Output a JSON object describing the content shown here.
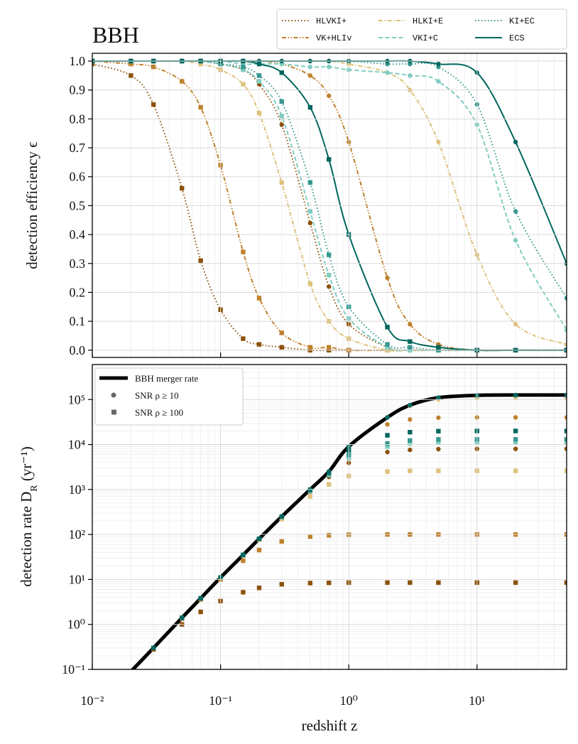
{
  "chart_data": [
    {
      "type": "line",
      "title": "BBH",
      "ylabel": "detection efficiency ϵ",
      "xscale": "log",
      "yscale": "linear",
      "xlim": [
        0.01,
        50
      ],
      "ylim": [
        -0.025,
        1.027
      ],
      "yticks": [
        {
          "value": 0,
          "label": "0.0"
        },
        0.1,
        0.2,
        0.3,
        0.4,
        0.5,
        0.6,
        0.7,
        0.8,
        0.9,
        {
          "value": 1,
          "label": "1.0"
        }
      ],
      "grid": true,
      "legend_loc": "upper right",
      "x": [
        0.01,
        0.02,
        0.03,
        0.05,
        0.07,
        0.1,
        0.15,
        0.2,
        0.3,
        0.5,
        0.7,
        1,
        2,
        3,
        5,
        10,
        20,
        50
      ],
      "series": [
        {
          "name": "HLVKI+",
          "color": "#8c510a",
          "linestyle": "dotted",
          "values": [
            [
              1,
              1,
              1,
              1,
              1,
              0.99,
              0.97,
              0.92,
              0.78,
              0.44,
              0.22,
              0.09,
              0.01,
              0,
              0,
              0,
              0,
              0
            ],
            [
              0.99,
              0.95,
              0.85,
              0.56,
              0.31,
              0.14,
              0.04,
              0.02,
              0.01,
              0,
              0,
              0,
              0,
              0,
              0,
              0,
              0,
              0
            ]
          ]
        },
        {
          "name": "VK+HLIv",
          "color": "#bf812d",
          "linestyle": "dashdotdotted",
          "values": [
            [
              1,
              1,
              1,
              1,
              1,
              1,
              1,
              1,
              0.99,
              0.95,
              0.88,
              0.72,
              0.25,
              0.09,
              0.02,
              0,
              0,
              0
            ],
            [
              1,
              0.99,
              0.98,
              0.93,
              0.84,
              0.64,
              0.34,
              0.18,
              0.06,
              0.01,
              0.01,
              0,
              0,
              0,
              0,
              0,
              0,
              0
            ]
          ]
        },
        {
          "name": "HLKI+E",
          "color": "#dfc27d",
          "linestyle": "dashdot",
          "values": [
            [
              1,
              1,
              1,
              1,
              1,
              1,
              1,
              1,
              1,
              1,
              1,
              0.99,
              0.96,
              0.9,
              0.72,
              0.33,
              0.09,
              0.02
            ],
            [
              1,
              1,
              1,
              1,
              0.99,
              0.97,
              0.92,
              0.82,
              0.58,
              0.23,
              0.1,
              0.04,
              0,
              0,
              0,
              0,
              0,
              0
            ]
          ]
        },
        {
          "name": "VKI+C",
          "color": "#80cdc1",
          "linestyle": "dashed",
          "values": [
            [
              1,
              1,
              1,
              1,
              1,
              1,
              0.99,
              0.99,
              0.99,
              0.98,
              0.98,
              0.97,
              0.96,
              0.95,
              0.93,
              0.78,
              0.38,
              0.07
            ],
            [
              1,
              1,
              1,
              1,
              1,
              0.99,
              0.97,
              0.93,
              0.81,
              0.48,
              0.26,
              0.11,
              0.01,
              0,
              0,
              0,
              0,
              0
            ]
          ]
        },
        {
          "name": "KI+EC",
          "color": "#35978f",
          "linestyle": "dotted",
          "values": [
            [
              1,
              1,
              1,
              1,
              1,
              1,
              1,
              1,
              1,
              1,
              1,
              1,
              0.99,
              0.99,
              0.98,
              0.85,
              0.48,
              0.18
            ],
            [
              1,
              1,
              1,
              1,
              1,
              0.99,
              0.98,
              0.95,
              0.86,
              0.58,
              0.33,
              0.15,
              0.02,
              0.01,
              0,
              0,
              0,
              0
            ]
          ]
        },
        {
          "name": "ECS",
          "color": "#01665e",
          "linestyle": "solid",
          "values": [
            [
              1,
              1,
              1,
              1,
              1,
              1,
              1,
              1,
              1,
              1,
              1,
              1,
              1,
              1,
              0.99,
              0.96,
              0.72,
              0.3
            ],
            [
              1,
              1,
              1,
              1,
              1,
              1,
              1,
              0.99,
              0.96,
              0.84,
              0.66,
              0.4,
              0.08,
              0.03,
              0.01,
              0,
              0,
              0
            ]
          ]
        }
      ]
    },
    {
      "type": "scatter",
      "xlabel": "redshift z",
      "ylabel": [
        "detection rate D",
        "R",
        " (yr⁻¹)"
      ],
      "xscale": "log",
      "yscale": "log",
      "xlim": [
        0.01,
        50
      ],
      "ylim": [
        0.1,
        600000
      ],
      "xticks": [
        {
          "value": 0.01,
          "label": "10⁻²"
        },
        {
          "value": 0.1,
          "label": "10⁻¹"
        },
        {
          "value": 1,
          "label": "10⁰"
        },
        {
          "value": 10,
          "label": "10¹"
        }
      ],
      "yticks": [
        {
          "value": 0.1,
          "label": "10⁻¹"
        },
        {
          "value": 1,
          "label": "10⁰"
        },
        {
          "value": 10,
          "label": "10¹"
        },
        {
          "value": 100,
          "label": "10²"
        },
        {
          "value": 1000,
          "label": "10³"
        },
        {
          "value": 10000,
          "label": "10⁴"
        },
        {
          "value": 100000,
          "label": "10⁵"
        }
      ],
      "grid": true,
      "legend_loc": "upper left",
      "markers": [
        {
          "label": "SNR ρ ≥ 10",
          "shape": "circle"
        },
        {
          "label": "SNR ρ ≥ 100",
          "shape": "square"
        }
      ],
      "x": [
        0.01,
        0.02,
        0.03,
        0.05,
        0.07,
        0.1,
        0.15,
        0.2,
        0.3,
        0.5,
        0.7,
        1,
        2,
        3,
        5,
        10,
        20,
        50
      ],
      "reference": {
        "name": "BBH merger rate",
        "color": "#000000",
        "values": [
          0.012,
          0.09,
          0.3,
          1.4,
          3.8,
          11,
          35,
          80,
          250,
          1000,
          2500,
          9000,
          40000,
          75000,
          110000,
          124000,
          126000,
          126000
        ]
      },
      "series": [
        {
          "name": "HLVKI+",
          "color": "#8c510a",
          "values": [
            [
              0.012,
              0.09,
              0.3,
              1.4,
              3.8,
              11,
              35,
              80,
              248,
              900,
              1900,
              3900,
              6800,
              7600,
              7900,
              8000,
              8000,
              8000
            ],
            [
              0.012,
              0.088,
              0.28,
              1,
              1.9,
              3.3,
              5.2,
              6.5,
              7.8,
              8.3,
              8.4,
              8.5,
              8.5,
              8.5,
              8.5,
              8.5,
              8.5,
              8.5
            ]
          ]
        },
        {
          "name": "VK+HLIv",
          "color": "#bf812d",
          "values": [
            [
              0.012,
              0.09,
              0.3,
              1.4,
              3.8,
              11,
              35,
              80,
              250,
              1000,
              2480,
              8600,
              28000,
              36000,
              39500,
              40000,
              40000,
              40000
            ],
            [
              0.012,
              0.09,
              0.3,
              1.35,
              3.6,
              10,
              26,
              45,
              70,
              90,
              96,
              99,
              100,
              100,
              100,
              100,
              100,
              100
            ]
          ]
        },
        {
          "name": "HLKI+E",
          "color": "#dfc27d",
          "values": [
            [
              0.012,
              0.09,
              0.3,
              1.4,
              3.8,
              11,
              35,
              80,
              250,
              1000,
              2500,
              9000,
              40000,
              72500,
              100500,
              107500,
              107900,
              108000
            ],
            [
              0.012,
              0.09,
              0.3,
              1.4,
              3.8,
              11,
              34,
              77,
              220,
              700,
              1300,
              2000,
              2500,
              2600,
              2600,
              2600,
              2600,
              2600
            ]
          ]
        },
        {
          "name": "VKI+C",
          "color": "#80cdc1",
          "values": [
            [
              0.012,
              0.09,
              0.3,
              1.4,
              3.8,
              11,
              35,
              80,
              250,
              1000,
              2500,
              9000,
              40000,
              75000,
              109500,
              122000,
              123200,
              123400
            ],
            [
              0.012,
              0.09,
              0.3,
              1.4,
              3.8,
              11,
              35,
              80,
              245,
              930,
              2100,
              5000,
              9000,
              10500,
              11000,
              11000,
              11000,
              11000
            ]
          ]
        },
        {
          "name": "KI+EC",
          "color": "#35978f",
          "values": [
            [
              0.012,
              0.09,
              0.3,
              1.4,
              3.8,
              11,
              35,
              80,
              250,
              1000,
              2500,
              9000,
              40000,
              75000,
              110000,
              123500,
              125000,
              125200
            ],
            [
              0.012,
              0.09,
              0.3,
              1.4,
              3.8,
              11,
              35,
              80,
              248,
              960,
              2250,
              5900,
              10500,
              12300,
              13000,
              13000,
              13000,
              13000
            ]
          ]
        },
        {
          "name": "ECS",
          "color": "#01665e",
          "values": [
            [
              0.012,
              0.09,
              0.3,
              1.4,
              3.8,
              11,
              35,
              80,
              250,
              1000,
              2500,
              9000,
              40000,
              75000,
              110000,
              124000,
              125800,
              126000
            ],
            [
              0.012,
              0.09,
              0.3,
              1.4,
              3.8,
              11,
              35,
              80,
              250,
              990,
              2400,
              7500,
              16000,
              18800,
              19800,
              20000,
              20000,
              20000
            ]
          ]
        }
      ]
    }
  ]
}
